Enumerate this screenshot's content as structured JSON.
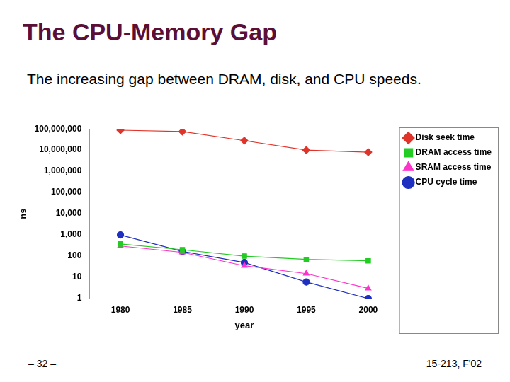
{
  "chart_data": {
    "type": "line",
    "title": "The CPU-Memory Gap",
    "subtitle": "The increasing gap between DRAM, disk, and CPU speeds.",
    "annotations": [
      "– 32 –",
      "15-213, F'02"
    ],
    "x_label": "year",
    "y_label": "ns",
    "categories": [
      "1980",
      "1985",
      "1990",
      "1995",
      "2000"
    ],
    "series": [
      {
        "name": "Disk seek time",
        "color": "#e0342a",
        "marker": "diamond",
        "values": [
          87000000,
          75000000,
          28000000,
          10000000,
          8000000
        ]
      },
      {
        "name": "DRAM access time",
        "color": "#22cc22",
        "marker": "square",
        "values": [
          375,
          200,
          100,
          70,
          60
        ]
      },
      {
        "name": "SRAM access time",
        "color": "#ff33cc",
        "marker": "triangle",
        "values": [
          300,
          150,
          35,
          15,
          3
        ]
      },
      {
        "name": "CPU cycle time",
        "color": "#1f2fbf",
        "marker": "circle",
        "values": [
          1000,
          166,
          50,
          6,
          1
        ]
      }
    ],
    "log": "y",
    "ylim": [
      1,
      100000000
    ],
    "yticks": [
      1,
      10,
      100,
      {
        "value": 1000,
        "label": "1,000"
      },
      {
        "value": 10000,
        "label": "10,000"
      },
      {
        "value": 100000,
        "label": "100,000"
      },
      {
        "value": 1000000,
        "label": "1,000,000"
      },
      {
        "value": 10000000,
        "label": "10,000,000"
      },
      {
        "value": 100000000,
        "label": "100,000,000"
      }
    ],
    "grid": false,
    "legend": "right"
  }
}
